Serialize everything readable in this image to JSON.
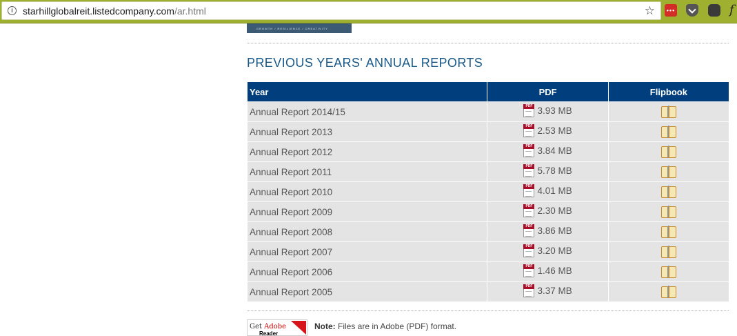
{
  "browser": {
    "url_host": "starhillglobalreit.listedcompany.com",
    "url_path": "/ar.html",
    "extensions": {
      "lastpass_label": "•••",
      "f_label": "f"
    }
  },
  "banner": {
    "tagline": "GROWTH / RESILIENCE / CREATIVITY"
  },
  "section": {
    "title": "PREVIOUS YEARS' ANNUAL REPORTS"
  },
  "table": {
    "headers": {
      "year": "Year",
      "pdf": "PDF",
      "flipbook": "Flipbook"
    },
    "rows": [
      {
        "year": "Annual Report 2014/15",
        "pdf_size": "3.93 MB"
      },
      {
        "year": "Annual Report 2013",
        "pdf_size": "2.53 MB"
      },
      {
        "year": "Annual Report 2012",
        "pdf_size": "3.84 MB"
      },
      {
        "year": "Annual Report 2011",
        "pdf_size": "5.78 MB"
      },
      {
        "year": "Annual Report 2010",
        "pdf_size": "4.01 MB"
      },
      {
        "year": "Annual Report 2009",
        "pdf_size": "2.30 MB"
      },
      {
        "year": "Annual Report 2008",
        "pdf_size": "3.86 MB"
      },
      {
        "year": "Annual Report 2007",
        "pdf_size": "3.20 MB"
      },
      {
        "year": "Annual Report 2006",
        "pdf_size": "1.46 MB"
      },
      {
        "year": "Annual Report 2005",
        "pdf_size": "3.37 MB"
      }
    ]
  },
  "footer": {
    "adobe_get": "Get",
    "adobe_brand": "Adobe",
    "adobe_reader": "Reader",
    "note_label": "Note:",
    "note_text": " Files are in Adobe (PDF) format."
  },
  "colors": {
    "chrome": "#9fb031",
    "header_bg": "#003e7e",
    "title": "#1a5a8a",
    "row_bg": "#e4e4e4"
  },
  "icons": [
    "info-icon",
    "star-icon",
    "pdf-icon",
    "book-icon",
    "lastpass-icon",
    "pocket-icon",
    "evernote-icon"
  ]
}
